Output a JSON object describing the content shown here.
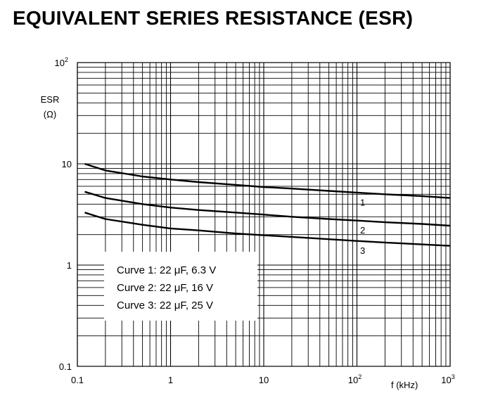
{
  "title": "EQUIVALENT SERIES RESISTANCE (ESR)",
  "chart_data": {
    "type": "line",
    "xscale": "log",
    "yscale": "log",
    "xlim": [
      0.1,
      1000
    ],
    "ylim": [
      0.1,
      100
    ],
    "xlabel": "f (kHz)",
    "ylabel": "ESR",
    "ylabel_unit": "(Ω)",
    "grid": true,
    "x_ticks": [
      {
        "base": "0.1",
        "exp": ""
      },
      {
        "base": "1",
        "exp": ""
      },
      {
        "base": "10",
        "exp": ""
      },
      {
        "base": "10",
        "exp": "2"
      },
      {
        "base": "10",
        "exp": "3"
      }
    ],
    "y_ticks": [
      {
        "base": "0.1",
        "exp": ""
      },
      {
        "base": "1",
        "exp": ""
      },
      {
        "base": "10",
        "exp": ""
      },
      {
        "base": "10",
        "exp": "2"
      }
    ],
    "series": [
      {
        "name": "1",
        "x": [
          0.12,
          0.2,
          0.5,
          1,
          2,
          5,
          10,
          20,
          50,
          100,
          200,
          500,
          1000
        ],
        "y": [
          10,
          8.6,
          7.5,
          7.0,
          6.6,
          6.2,
          5.9,
          5.7,
          5.4,
          5.2,
          5.0,
          4.8,
          4.6
        ]
      },
      {
        "name": "2",
        "x": [
          0.12,
          0.2,
          0.5,
          1,
          2,
          5,
          10,
          20,
          50,
          100,
          200,
          500,
          1000
        ],
        "y": [
          5.3,
          4.6,
          4.0,
          3.7,
          3.5,
          3.3,
          3.15,
          3.0,
          2.85,
          2.75,
          2.65,
          2.55,
          2.45
        ]
      },
      {
        "name": "3",
        "x": [
          0.12,
          0.2,
          0.5,
          1,
          2,
          5,
          10,
          20,
          50,
          100,
          200,
          500,
          1000
        ],
        "y": [
          3.3,
          2.85,
          2.5,
          2.3,
          2.2,
          2.05,
          1.97,
          1.9,
          1.8,
          1.73,
          1.67,
          1.6,
          1.55
        ]
      }
    ],
    "legend": [
      "Curve 1: 22 μF, 6.3 V",
      "Curve 2: 22 μF, 16 V",
      "Curve 3: 22 μF, 25 V"
    ],
    "legend_position": "bottom-left"
  }
}
